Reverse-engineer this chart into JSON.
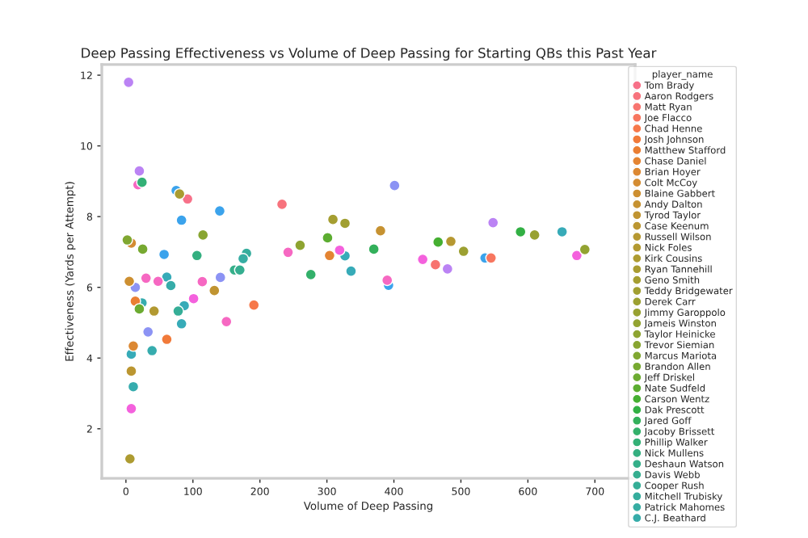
{
  "chart_data": {
    "type": "scatter",
    "title": "Deep Passing Effectiveness vs Volume of Deep Passing for Starting QBs this Past Year",
    "xlabel": "Volume of Deep Passing",
    "ylabel": "Effectiveness (Yards per Attempt)",
    "legend_title": "player_name",
    "legend": "right",
    "marker": "circle",
    "grid": false,
    "xlim": [
      -36,
      760
    ],
    "ylim": [
      0.6,
      12.3
    ],
    "xticks": [
      0,
      100,
      200,
      300,
      400,
      500,
      600,
      700
    ],
    "yticks": [
      2,
      4,
      6,
      8,
      10,
      12
    ],
    "series": [
      {
        "name": "Tom Brady",
        "color": "#f77189",
        "x": [
          92
        ],
        "values": [
          8.5
        ]
      },
      {
        "name": "Aaron Rodgers",
        "color": "#f7737d",
        "x": [
          233
        ],
        "values": [
          8.35
        ]
      },
      {
        "name": "Matt Ryan",
        "color": "#f7746f",
        "x": [
          462
        ],
        "values": [
          6.64
        ]
      },
      {
        "name": "Joe Flacco",
        "color": "#f7765f",
        "x": [
          545
        ],
        "values": [
          6.83
        ]
      },
      {
        "name": "Chad Henne",
        "color": "#f6784a",
        "x": [
          191
        ],
        "values": [
          5.5
        ]
      },
      {
        "name": "Josh Johnson",
        "color": "#f17a3a",
        "x": [
          61
        ],
        "values": [
          4.53
        ]
      },
      {
        "name": "Matthew Stafford",
        "color": "#ea7e32",
        "x": [
          14
        ],
        "values": [
          5.61
        ]
      },
      {
        "name": "Chase Daniel",
        "color": "#e48432",
        "x": [
          304
        ],
        "values": [
          6.9
        ]
      },
      {
        "name": "Brian Hoyer",
        "color": "#dc8832",
        "x": [
          11
        ],
        "values": [
          4.34
        ]
      },
      {
        "name": "Colt McCoy",
        "color": "#d48c32",
        "x": [
          8
        ],
        "values": [
          7.25
        ]
      },
      {
        "name": "Blaine Gabbert",
        "color": "#cd8f31",
        "x": [
          5
        ],
        "values": [
          6.17
        ]
      },
      {
        "name": "Andy Dalton",
        "color": "#c69231",
        "x": [
          380
        ],
        "values": [
          7.6
        ]
      },
      {
        "name": "Tyrod Taylor",
        "color": "#c09431",
        "x": [
          132
        ],
        "values": [
          5.91
        ]
      },
      {
        "name": "Case Keenum",
        "color": "#bb9631",
        "x": [
          8
        ],
        "values": [
          3.63
        ]
      },
      {
        "name": "Russell Wilson",
        "color": "#b69831",
        "x": [
          485
        ],
        "values": [
          7.3
        ]
      },
      {
        "name": "Nick Foles",
        "color": "#b29931",
        "x": [
          42
        ],
        "values": [
          5.33
        ]
      },
      {
        "name": "Kirk Cousins",
        "color": "#ad9b31",
        "x": [
          6
        ],
        "values": [
          1.15
        ]
      },
      {
        "name": "Ryan Tannehill",
        "color": "#a99c31",
        "x": [
          80
        ],
        "values": [
          8.64
        ]
      },
      {
        "name": "Geno Smith",
        "color": "#a59e31",
        "x": [
          309
        ],
        "values": [
          7.92
        ]
      },
      {
        "name": "Teddy Bridgewater",
        "color": "#a19f31",
        "x": [
          327
        ],
        "values": [
          7.81
        ]
      },
      {
        "name": "Derek Carr",
        "color": "#9ca031",
        "x": [
          504
        ],
        "values": [
          7.02
        ]
      },
      {
        "name": "Jimmy Garoppolo",
        "color": "#98a131",
        "x": [
          610
        ],
        "values": [
          7.48
        ]
      },
      {
        "name": "Jameis Winston",
        "color": "#93a331",
        "x": [
          685
        ],
        "values": [
          7.07
        ]
      },
      {
        "name": "Taylor Heinicke",
        "color": "#8ea431",
        "x": [
          260
        ],
        "values": [
          7.19
        ]
      },
      {
        "name": "Trevor Siemian",
        "color": "#88a531",
        "x": [
          115
        ],
        "values": [
          7.48
        ]
      },
      {
        "name": "Marcus Mariota",
        "color": "#80a731",
        "x": [
          2
        ],
        "values": [
          7.34
        ]
      },
      {
        "name": "Brandon Allen",
        "color": "#77a931",
        "x": [
          25
        ],
        "values": [
          7.08
        ]
      },
      {
        "name": "Jeff Driskel",
        "color": "#6cab31",
        "x": [
          20
        ],
        "values": [
          5.39
        ]
      },
      {
        "name": "Nate Sudfeld",
        "color": "#5cad31",
        "x": [
          301
        ],
        "values": [
          7.4
        ]
      },
      {
        "name": "Carson Wentz",
        "color": "#45af31",
        "x": [
          466
        ],
        "values": [
          7.28
        ]
      },
      {
        "name": "Dak Prescott",
        "color": "#32b044",
        "x": [
          589
        ],
        "values": [
          7.57
        ]
      },
      {
        "name": "Jared Goff",
        "color": "#33b05b",
        "x": [
          370
        ],
        "values": [
          7.08
        ]
      },
      {
        "name": "Jacoby Brissett",
        "color": "#33b06a",
        "x": [
          276
        ],
        "values": [
          6.36
        ]
      },
      {
        "name": "Phillip Walker",
        "color": "#33b076",
        "x": [
          24
        ],
        "values": [
          8.97
        ]
      },
      {
        "name": "Nick Mullens",
        "color": "#34af80",
        "x": [
          106
        ],
        "values": [
          6.9
        ]
      },
      {
        "name": "Deshaun Watson",
        "color": "#34af89",
        "x": [
          162
        ],
        "values": [
          6.49
        ]
      },
      {
        "name": "Davis Webb",
        "color": "#35ae90",
        "x": [
          170
        ],
        "values": [
          6.49
        ]
      },
      {
        "name": "Cooper Rush",
        "color": "#35ae97",
        "x": [
          78
        ],
        "values": [
          5.33
        ]
      },
      {
        "name": "Mitchell Trubisky",
        "color": "#35ad9d",
        "x": [
          180
        ],
        "values": [
          6.96
        ]
      },
      {
        "name": "Patrick Mahomes",
        "color": "#36ada3",
        "x": [
          175
        ],
        "values": [
          6.81
        ]
      },
      {
        "name": "C.J. Beathard",
        "color": "#36aca9",
        "x": [
          67
        ],
        "values": [
          6.05
        ]
      },
      {
        "color": "#36acae",
        "x": [
          24,
          39,
          11
        ],
        "values": [
          5.56,
          4.21,
          3.19
        ]
      },
      {
        "color": "#37abb8",
        "x": [
          651,
          327,
          336,
          61,
          87,
          83,
          8
        ],
        "values": [
          7.57,
          6.89,
          6.46,
          6.29,
          5.48,
          4.97,
          4.11
        ]
      },
      {
        "color": "#3ba3ec",
        "x": [
          75,
          83,
          140,
          57,
          392,
          536
        ],
        "values": [
          8.74,
          7.9,
          8.16,
          6.93,
          6.06,
          6.83
        ]
      },
      {
        "color": "#8c93f4",
        "x": [
          401,
          14,
          141,
          33
        ],
        "values": [
          8.88,
          6.0,
          6.28,
          4.74
        ]
      },
      {
        "color": "#bb83f4",
        "x": [
          4,
          20,
          480,
          548
        ],
        "values": [
          11.8,
          9.29,
          6.52,
          7.83
        ]
      },
      {
        "color": "#f461dd",
        "x": [
          319,
          443,
          673,
          101,
          8
        ],
        "values": [
          7.05,
          6.79,
          6.9,
          5.68,
          2.57
        ]
      },
      {
        "color": "#f668c2",
        "x": [
          18,
          242,
          30,
          48,
          114,
          150,
          390
        ],
        "values": [
          8.9,
          6.99,
          6.26,
          6.17,
          6.16,
          5.03,
          6.2
        ]
      }
    ]
  }
}
